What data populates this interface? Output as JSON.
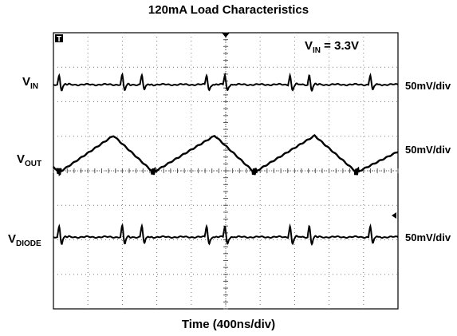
{
  "chart_data": {
    "type": "line",
    "title": "120mA Load Characteristics",
    "xlabel": "Time (400ns/div)",
    "x_divisions": 10,
    "y_divisions": 8,
    "grid": true,
    "annotation": {
      "main": "V",
      "sub": "IN",
      "suffix": " = 3.3V"
    },
    "series": [
      {
        "label_main": "V",
        "label_sub": "IN",
        "scale": "50mV/div",
        "shape": "flat-with-switching-spikes"
      },
      {
        "label_main": "V",
        "label_sub": "OUT",
        "scale": "50mV/div",
        "shape": "triangle-ripple"
      },
      {
        "label_main": "V",
        "label_sub": "DIODE",
        "scale": "50mV/div",
        "shape": "flat-with-switching-spikes"
      }
    ],
    "switching_times_div": [
      0.17,
      2.0,
      2.57,
      4.45,
      4.98,
      6.87,
      7.43,
      9.2
    ],
    "ripple_peaks_div": [
      1.74,
      4.68,
      7.58
    ],
    "ripple_troughs_div": [
      0.17,
      2.9,
      5.83,
      8.8
    ]
  }
}
